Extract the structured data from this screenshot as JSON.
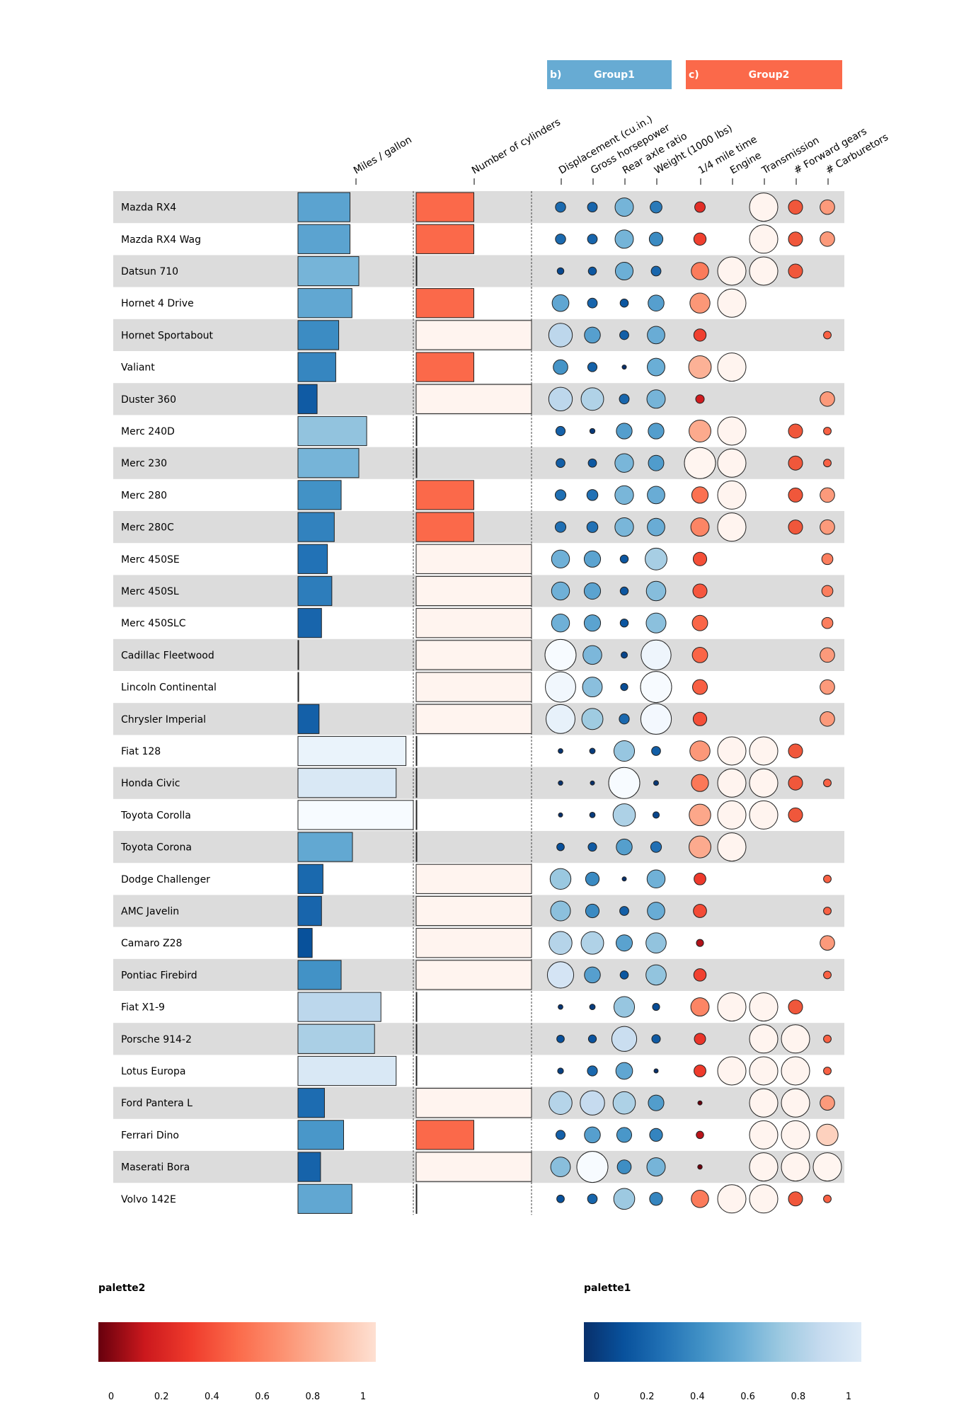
{
  "chart_data": {
    "type": "table",
    "groups": [
      {
        "tag": "b)",
        "name": "Group1",
        "color": "#67abd3"
      },
      {
        "tag": "c)",
        "name": "Group2",
        "color": "#fb694a"
      }
    ],
    "columns": [
      "Miles / gallon",
      "Number of cylinders",
      "Displacement (cu.in.)",
      "Gross horsepower",
      "Rear axle ratio",
      "Weight (1000 lbs)",
      "1/4 mile time",
      "Engine",
      "Transmission",
      "# Forward gears",
      "# Carburetors"
    ],
    "rows": [
      {
        "name": "Mazda RX4",
        "mpg": 21,
        "cyl": 6,
        "disp": 160,
        "hp": 110,
        "drat": 3.9,
        "wt": 2.62,
        "qsec": 16.46,
        "vs": 0,
        "am": 1,
        "gear": 4,
        "carb": 4
      },
      {
        "name": "Mazda RX4 Wag",
        "mpg": 21,
        "cyl": 6,
        "disp": 160,
        "hp": 110,
        "drat": 3.9,
        "wt": 2.875,
        "qsec": 17.02,
        "vs": 0,
        "am": 1,
        "gear": 4,
        "carb": 4
      },
      {
        "name": "Datsun 710",
        "mpg": 22.8,
        "cyl": 4,
        "disp": 108,
        "hp": 93,
        "drat": 3.85,
        "wt": 2.32,
        "qsec": 18.61,
        "vs": 1,
        "am": 1,
        "gear": 4,
        "carb": 1
      },
      {
        "name": "Hornet 4 Drive",
        "mpg": 21.4,
        "cyl": 6,
        "disp": 258,
        "hp": 110,
        "drat": 3.08,
        "wt": 3.215,
        "qsec": 19.44,
        "vs": 1,
        "am": 0,
        "gear": 3,
        "carb": 1
      },
      {
        "name": "Hornet Sportabout",
        "mpg": 18.7,
        "cyl": 8,
        "disp": 360,
        "hp": 175,
        "drat": 3.15,
        "wt": 3.44,
        "qsec": 17.02,
        "vs": 0,
        "am": 0,
        "gear": 3,
        "carb": 2
      },
      {
        "name": "Valiant",
        "mpg": 18.1,
        "cyl": 6,
        "disp": 225,
        "hp": 105,
        "drat": 2.76,
        "wt": 3.46,
        "qsec": 20.22,
        "vs": 1,
        "am": 0,
        "gear": 3,
        "carb": 1
      },
      {
        "name": "Duster 360",
        "mpg": 14.3,
        "cyl": 8,
        "disp": 360,
        "hp": 245,
        "drat": 3.21,
        "wt": 3.57,
        "qsec": 15.84,
        "vs": 0,
        "am": 0,
        "gear": 3,
        "carb": 4
      },
      {
        "name": "Merc 240D",
        "mpg": 24.4,
        "cyl": 4,
        "disp": 146.7,
        "hp": 62,
        "drat": 3.69,
        "wt": 3.19,
        "qsec": 20,
        "vs": 1,
        "am": 0,
        "gear": 4,
        "carb": 2
      },
      {
        "name": "Merc 230",
        "mpg": 22.8,
        "cyl": 4,
        "disp": 140.8,
        "hp": 95,
        "drat": 3.92,
        "wt": 3.15,
        "qsec": 22.9,
        "vs": 1,
        "am": 0,
        "gear": 4,
        "carb": 2
      },
      {
        "name": "Merc 280",
        "mpg": 19.2,
        "cyl": 6,
        "disp": 167.6,
        "hp": 123,
        "drat": 3.92,
        "wt": 3.44,
        "qsec": 18.3,
        "vs": 1,
        "am": 0,
        "gear": 4,
        "carb": 4
      },
      {
        "name": "Merc 280C",
        "mpg": 17.8,
        "cyl": 6,
        "disp": 167.6,
        "hp": 123,
        "drat": 3.92,
        "wt": 3.44,
        "qsec": 18.9,
        "vs": 1,
        "am": 0,
        "gear": 4,
        "carb": 4
      },
      {
        "name": "Merc 450SE",
        "mpg": 16.4,
        "cyl": 8,
        "disp": 275.8,
        "hp": 180,
        "drat": 3.07,
        "wt": 4.07,
        "qsec": 17.4,
        "vs": 0,
        "am": 0,
        "gear": 3,
        "carb": 3
      },
      {
        "name": "Merc 450SL",
        "mpg": 17.3,
        "cyl": 8,
        "disp": 275.8,
        "hp": 180,
        "drat": 3.07,
        "wt": 3.73,
        "qsec": 17.6,
        "vs": 0,
        "am": 0,
        "gear": 3,
        "carb": 3
      },
      {
        "name": "Merc 450SLC",
        "mpg": 15.2,
        "cyl": 8,
        "disp": 275.8,
        "hp": 180,
        "drat": 3.07,
        "wt": 3.78,
        "qsec": 18,
        "vs": 0,
        "am": 0,
        "gear": 3,
        "carb": 3
      },
      {
        "name": "Cadillac Fleetwood",
        "mpg": 10.4,
        "cyl": 8,
        "disp": 472,
        "hp": 205,
        "drat": 2.93,
        "wt": 5.25,
        "qsec": 17.98,
        "vs": 0,
        "am": 0,
        "gear": 3,
        "carb": 4
      },
      {
        "name": "Lincoln Continental",
        "mpg": 10.4,
        "cyl": 8,
        "disp": 460,
        "hp": 215,
        "drat": 3,
        "wt": 5.424,
        "qsec": 17.82,
        "vs": 0,
        "am": 0,
        "gear": 3,
        "carb": 4
      },
      {
        "name": "Chrysler Imperial",
        "mpg": 14.7,
        "cyl": 8,
        "disp": 440,
        "hp": 230,
        "drat": 3.23,
        "wt": 5.345,
        "qsec": 17.42,
        "vs": 0,
        "am": 0,
        "gear": 3,
        "carb": 4
      },
      {
        "name": "Fiat 128",
        "mpg": 32.4,
        "cyl": 4,
        "disp": 78.7,
        "hp": 66,
        "drat": 4.08,
        "wt": 2.2,
        "qsec": 19.47,
        "vs": 1,
        "am": 1,
        "gear": 4,
        "carb": 1
      },
      {
        "name": "Honda Civic",
        "mpg": 30.4,
        "cyl": 4,
        "disp": 75.7,
        "hp": 52,
        "drat": 4.93,
        "wt": 1.615,
        "qsec": 18.52,
        "vs": 1,
        "am": 1,
        "gear": 4,
        "carb": 2
      },
      {
        "name": "Toyota Corolla",
        "mpg": 33.9,
        "cyl": 4,
        "disp": 71.1,
        "hp": 65,
        "drat": 4.22,
        "wt": 1.835,
        "qsec": 19.9,
        "vs": 1,
        "am": 1,
        "gear": 4,
        "carb": 1
      },
      {
        "name": "Toyota Corona",
        "mpg": 21.5,
        "cyl": 4,
        "disp": 120.1,
        "hp": 97,
        "drat": 3.7,
        "wt": 2.465,
        "qsec": 20.01,
        "vs": 1,
        "am": 0,
        "gear": 3,
        "carb": 1
      },
      {
        "name": "Dodge Challenger",
        "mpg": 15.5,
        "cyl": 8,
        "disp": 318,
        "hp": 150,
        "drat": 2.76,
        "wt": 3.52,
        "qsec": 16.87,
        "vs": 0,
        "am": 0,
        "gear": 3,
        "carb": 2
      },
      {
        "name": "AMC Javelin",
        "mpg": 15.2,
        "cyl": 8,
        "disp": 304,
        "hp": 150,
        "drat": 3.15,
        "wt": 3.435,
        "qsec": 17.3,
        "vs": 0,
        "am": 0,
        "gear": 3,
        "carb": 2
      },
      {
        "name": "Camaro Z28",
        "mpg": 13.3,
        "cyl": 8,
        "disp": 350,
        "hp": 245,
        "drat": 3.73,
        "wt": 3.84,
        "qsec": 15.41,
        "vs": 0,
        "am": 0,
        "gear": 3,
        "carb": 4
      },
      {
        "name": "Pontiac Firebird",
        "mpg": 19.2,
        "cyl": 8,
        "disp": 400,
        "hp": 175,
        "drat": 3.08,
        "wt": 3.845,
        "qsec": 17.05,
        "vs": 0,
        "am": 0,
        "gear": 3,
        "carb": 2
      },
      {
        "name": "Fiat X1-9",
        "mpg": 27.3,
        "cyl": 4,
        "disp": 79,
        "hp": 66,
        "drat": 4.08,
        "wt": 1.935,
        "qsec": 18.9,
        "vs": 1,
        "am": 1,
        "gear": 4,
        "carb": 1
      },
      {
        "name": "Porsche 914-2",
        "mpg": 26,
        "cyl": 4,
        "disp": 120.3,
        "hp": 91,
        "drat": 4.43,
        "wt": 2.14,
        "qsec": 16.7,
        "vs": 0,
        "am": 1,
        "gear": 5,
        "carb": 2
      },
      {
        "name": "Lotus Europa",
        "mpg": 30.4,
        "cyl": 4,
        "disp": 95.1,
        "hp": 113,
        "drat": 3.77,
        "wt": 1.513,
        "qsec": 16.9,
        "vs": 1,
        "am": 1,
        "gear": 5,
        "carb": 2
      },
      {
        "name": "Ford Pantera L",
        "mpg": 15.8,
        "cyl": 8,
        "disp": 351,
        "hp": 264,
        "drat": 4.22,
        "wt": 3.17,
        "qsec": 14.5,
        "vs": 0,
        "am": 1,
        "gear": 5,
        "carb": 4
      },
      {
        "name": "Ferrari Dino",
        "mpg": 19.7,
        "cyl": 6,
        "disp": 145,
        "hp": 175,
        "drat": 3.62,
        "wt": 2.77,
        "qsec": 15.5,
        "vs": 0,
        "am": 1,
        "gear": 5,
        "carb": 6
      },
      {
        "name": "Maserati Bora",
        "mpg": 15,
        "cyl": 8,
        "disp": 301,
        "hp": 335,
        "drat": 3.54,
        "wt": 3.57,
        "qsec": 14.6,
        "vs": 0,
        "am": 1,
        "gear": 5,
        "carb": 8
      },
      {
        "name": "Volvo 142E",
        "mpg": 21.4,
        "cyl": 4,
        "disp": 121,
        "hp": 109,
        "drat": 4.11,
        "wt": 2.78,
        "qsec": 18.6,
        "vs": 1,
        "am": 1,
        "gear": 4,
        "carb": 2
      }
    ],
    "legends": [
      {
        "title": "palette2",
        "ticks": [
          "0",
          "0.2",
          "0.4",
          "0.6",
          "0.8",
          "1"
        ],
        "colors": [
          "#67000d",
          "#cb181d",
          "#ef3b2c",
          "#fb6a4a",
          "#fc9272",
          "#fcbba1",
          "#fee0d2"
        ]
      },
      {
        "title": "palette1",
        "ticks": [
          "0",
          "0.2",
          "0.4",
          "0.6",
          "0.8",
          "1"
        ],
        "colors": [
          "#08306b",
          "#08519c",
          "#2171b5",
          "#4292c6",
          "#6baed6",
          "#9ecae1",
          "#c6dbef",
          "#deebf7"
        ]
      }
    ]
  }
}
